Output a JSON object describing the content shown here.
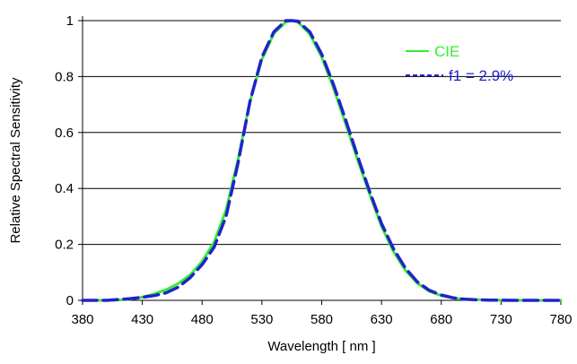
{
  "chart_data": {
    "type": "line",
    "xlabel": "Wavelength [ nm ]",
    "ylabel": "Relative Spectral Sensitivity",
    "xlim": [
      380,
      780
    ],
    "ylim": [
      0,
      1
    ],
    "x_ticks": [
      "380",
      "430",
      "480",
      "530",
      "580",
      "630",
      "680",
      "730",
      "780"
    ],
    "y_ticks": [
      "0",
      "0.2",
      "0.4",
      "0.6",
      "0.8",
      "1"
    ],
    "grid": "horizontal",
    "legend_position": "top-right",
    "series": [
      {
        "name": "CIE",
        "color": "#33ee33",
        "style": "solid",
        "x": [
          380,
          400,
          410,
          420,
          430,
          440,
          450,
          460,
          470,
          480,
          490,
          500,
          510,
          520,
          530,
          540,
          550,
          555,
          560,
          570,
          580,
          590,
          600,
          610,
          620,
          630,
          640,
          650,
          660,
          670,
          680,
          690,
          700,
          710,
          720,
          740,
          760,
          780
        ],
        "y": [
          0.0,
          0.0004,
          0.0012,
          0.004,
          0.0116,
          0.023,
          0.038,
          0.06,
          0.091,
          0.139,
          0.208,
          0.323,
          0.503,
          0.71,
          0.862,
          0.954,
          0.995,
          1.0,
          0.995,
          0.952,
          0.87,
          0.757,
          0.631,
          0.503,
          0.381,
          0.265,
          0.175,
          0.107,
          0.061,
          0.032,
          0.017,
          0.0082,
          0.0041,
          0.0021,
          0.001,
          0.0002,
          0.0,
          0.0
        ]
      },
      {
        "name": "f1 = 2.9%",
        "color": "#2222cc",
        "style": "dashed",
        "x": [
          380,
          400,
          410,
          420,
          430,
          440,
          450,
          460,
          470,
          480,
          490,
          500,
          510,
          520,
          530,
          540,
          550,
          555,
          560,
          570,
          580,
          590,
          600,
          610,
          620,
          630,
          640,
          650,
          660,
          670,
          680,
          690,
          700,
          710,
          720,
          740,
          760,
          780
        ],
        "y": [
          0.0,
          0.0,
          0.003,
          0.006,
          0.011,
          0.017,
          0.027,
          0.047,
          0.081,
          0.128,
          0.19,
          0.3,
          0.49,
          0.71,
          0.87,
          0.96,
          1.0,
          1.0,
          0.998,
          0.96,
          0.88,
          0.77,
          0.645,
          0.515,
          0.39,
          0.275,
          0.185,
          0.115,
          0.066,
          0.036,
          0.019,
          0.009,
          0.004,
          0.002,
          0.001,
          0.0,
          0.0,
          0.0
        ]
      }
    ]
  }
}
